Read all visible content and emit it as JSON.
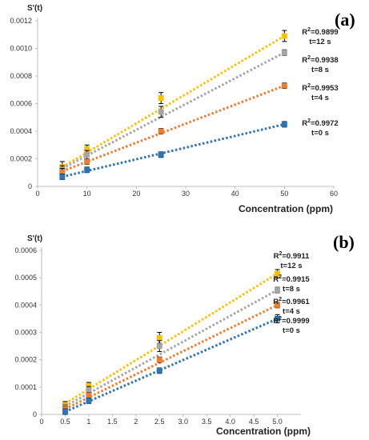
{
  "chart_data": [
    {
      "panel": "(a)",
      "type": "scatter",
      "ylabel": "S'(t)",
      "xlabel": "Concentration (ppm)",
      "xlim": [
        0,
        60
      ],
      "ylim": [
        0,
        0.0012
      ],
      "x_ticks": [
        "0",
        "10",
        "20",
        "30",
        "40",
        "50",
        "60"
      ],
      "y_ticks": [
        "0",
        "0.0002",
        "0.0004",
        "0.0006",
        "0.0008",
        "0.0010",
        "0.0012"
      ],
      "x": [
        5,
        10,
        25,
        50
      ],
      "series": [
        {
          "color": "#ffc000",
          "values": [
            0.00014,
            0.00027,
            0.00064,
            0.00109
          ],
          "errors": [
            4e-05,
            3e-05,
            4e-05,
            4e-05
          ],
          "fit": [
            [
              5,
              0.00014
            ],
            [
              50,
              0.00109
            ]
          ],
          "r2": "R²=0.9899",
          "t": "t=12 s"
        },
        {
          "color": "#a5a5a5",
          "values": [
            0.00012,
            0.00023,
            0.00054,
            0.00097
          ],
          "errors": [
            3e-05,
            3e-05,
            4e-05,
            2e-05
          ],
          "fit": [
            [
              5,
              0.00013
            ],
            [
              50,
              0.00097
            ]
          ],
          "r2": "R²=0.9938",
          "t": "t=8 s"
        },
        {
          "color": "#ed7d31",
          "values": [
            0.0001,
            0.00018,
            0.0004,
            0.00073
          ],
          "errors": [
            3e-05,
            2e-05,
            2e-05,
            2e-05
          ],
          "fit": [
            [
              5,
              0.00011
            ],
            [
              50,
              0.00073
            ]
          ],
          "r2": "R²=0.9953",
          "t": "t=4 s"
        },
        {
          "color": "#2e75b6",
          "values": [
            7e-05,
            0.00012,
            0.00023,
            0.00045
          ],
          "errors": [
            2e-05,
            2e-05,
            2e-05,
            2e-05
          ],
          "fit": [
            [
              5,
              7e-05
            ],
            [
              50,
              0.00045
            ]
          ],
          "r2": "R²=0.9972",
          "t": "t=0 s"
        }
      ]
    },
    {
      "panel": "(b)",
      "type": "scatter",
      "ylabel": "S'(t)",
      "xlabel": "Concentration (ppm)",
      "xlim": [
        0,
        5.5
      ],
      "ylim": [
        0,
        0.0006
      ],
      "x_ticks": [
        "0",
        "0.5",
        "1",
        "1.5",
        "2",
        "2.5",
        "3.0",
        "3.5",
        "4.0",
        "4.5",
        "5.0"
      ],
      "y_ticks": [
        "0",
        "0.0001",
        "0.0002",
        "0.0003",
        "0.0004",
        "0.0005",
        "0.0006"
      ],
      "x": [
        0.5,
        1,
        2.5,
        5
      ],
      "series": [
        {
          "color": "#ffc000",
          "values": [
            3.5e-05,
            0.000105,
            0.00028,
            0.000515
          ],
          "errors": [
            1.2e-05,
            1.2e-05,
            2e-05,
            1.5e-05
          ],
          "fit": [
            [
              0.5,
              4e-05
            ],
            [
              5,
              0.000515
            ]
          ],
          "r2": "R²=0.9911",
          "t": "t=12 s"
        },
        {
          "color": "#a5a5a5",
          "values": [
            2.5e-05,
            9e-05,
            0.00025,
            0.000455
          ],
          "errors": [
            1e-05,
            1.2e-05,
            2e-05,
            1e-05
          ],
          "fit": [
            [
              0.5,
              3e-05
            ],
            [
              5,
              0.000455
            ]
          ],
          "r2": "R²=0.9915",
          "t": "t=8 s"
        },
        {
          "color": "#ed7d31",
          "values": [
            2e-05,
            7e-05,
            0.0002,
            0.0004
          ],
          "errors": [
            1e-05,
            1e-05,
            1e-05,
            1e-05
          ],
          "fit": [
            [
              0.5,
              2e-05
            ],
            [
              5,
              0.0004
            ]
          ],
          "r2": "R²=0.9961",
          "t": "t=4 s"
        },
        {
          "color": "#2e75b6",
          "values": [
            1e-05,
            5e-05,
            0.00016,
            0.00035
          ],
          "errors": [
            1e-05,
            1e-05,
            1e-05,
            1.5e-05
          ],
          "fit": [
            [
              0.5,
              1e-05
            ],
            [
              5,
              0.00035
            ]
          ],
          "r2": "R²=0.9999",
          "t": "t=0 s"
        }
      ]
    }
  ]
}
